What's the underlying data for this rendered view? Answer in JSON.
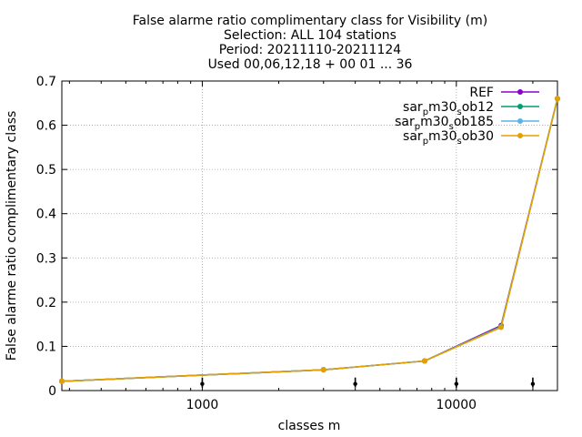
{
  "chart_data": {
    "type": "line",
    "title": [
      "False alarme ratio complimentary class  for Visibility (m)",
      "Selection: ALL    104 stations",
      "Period: 20211110-20211124",
      "Used 00,06,12,18 + 00 01 ... 36"
    ],
    "xlabel": "classes m",
    "ylabel": "False alarme ratio complimentary class",
    "x_scale": "log",
    "xlim": [
      280,
      25000
    ],
    "ylim": [
      0,
      0.7
    ],
    "x_ticks": [
      1000,
      10000
    ],
    "x_tick_labels": [
      "1000",
      "10000"
    ],
    "y_ticks": [
      0,
      0.1,
      0.2,
      0.3,
      0.4,
      0.5,
      0.6,
      0.7
    ],
    "y_tick_labels": [
      "0",
      "0.1",
      "0.2",
      "0.3",
      "0.4",
      "0.5",
      "0.6",
      "0.7"
    ],
    "grid": true,
    "legend_position": "top-right",
    "x": [
      280,
      3000,
      7500,
      15000,
      25000
    ],
    "series": [
      {
        "name": "REF",
        "legend_parts": [
          {
            "t": "REF",
            "sub": false
          }
        ],
        "color": "#8b00c9",
        "values": [
          0.021,
          0.047,
          0.067,
          0.147,
          0.66
        ]
      },
      {
        "name": "sar_pm30_sob12",
        "legend_parts": [
          {
            "t": "sar",
            "sub": false
          },
          {
            "t": "p",
            "sub": true
          },
          {
            "t": "m30",
            "sub": false
          },
          {
            "t": "s",
            "sub": true
          },
          {
            "t": "ob12",
            "sub": false
          }
        ],
        "color": "#009e73",
        "values": [
          0.021,
          0.047,
          0.067,
          0.145,
          0.66
        ]
      },
      {
        "name": "sar_pm30_sob185",
        "legend_parts": [
          {
            "t": "sar",
            "sub": false
          },
          {
            "t": "p",
            "sub": true
          },
          {
            "t": "m30",
            "sub": false
          },
          {
            "t": "s",
            "sub": true
          },
          {
            "t": "ob185",
            "sub": false
          }
        ],
        "color": "#56b4e9",
        "values": [
          0.021,
          0.047,
          0.067,
          0.144,
          0.66
        ]
      },
      {
        "name": "sar_pm30_sob30",
        "legend_parts": [
          {
            "t": "sar",
            "sub": false
          },
          {
            "t": "p",
            "sub": true
          },
          {
            "t": "m30",
            "sub": false
          },
          {
            "t": "s",
            "sub": true
          },
          {
            "t": "ob30",
            "sub": false
          }
        ],
        "color": "#e69f00",
        "values": [
          0.021,
          0.047,
          0.067,
          0.143,
          0.66
        ]
      }
    ],
    "markers": {
      "x": [
        1000,
        4000,
        10000,
        20000
      ],
      "y": [
        0.015,
        0.015,
        0.015,
        0.015
      ],
      "color": "#000000"
    }
  }
}
